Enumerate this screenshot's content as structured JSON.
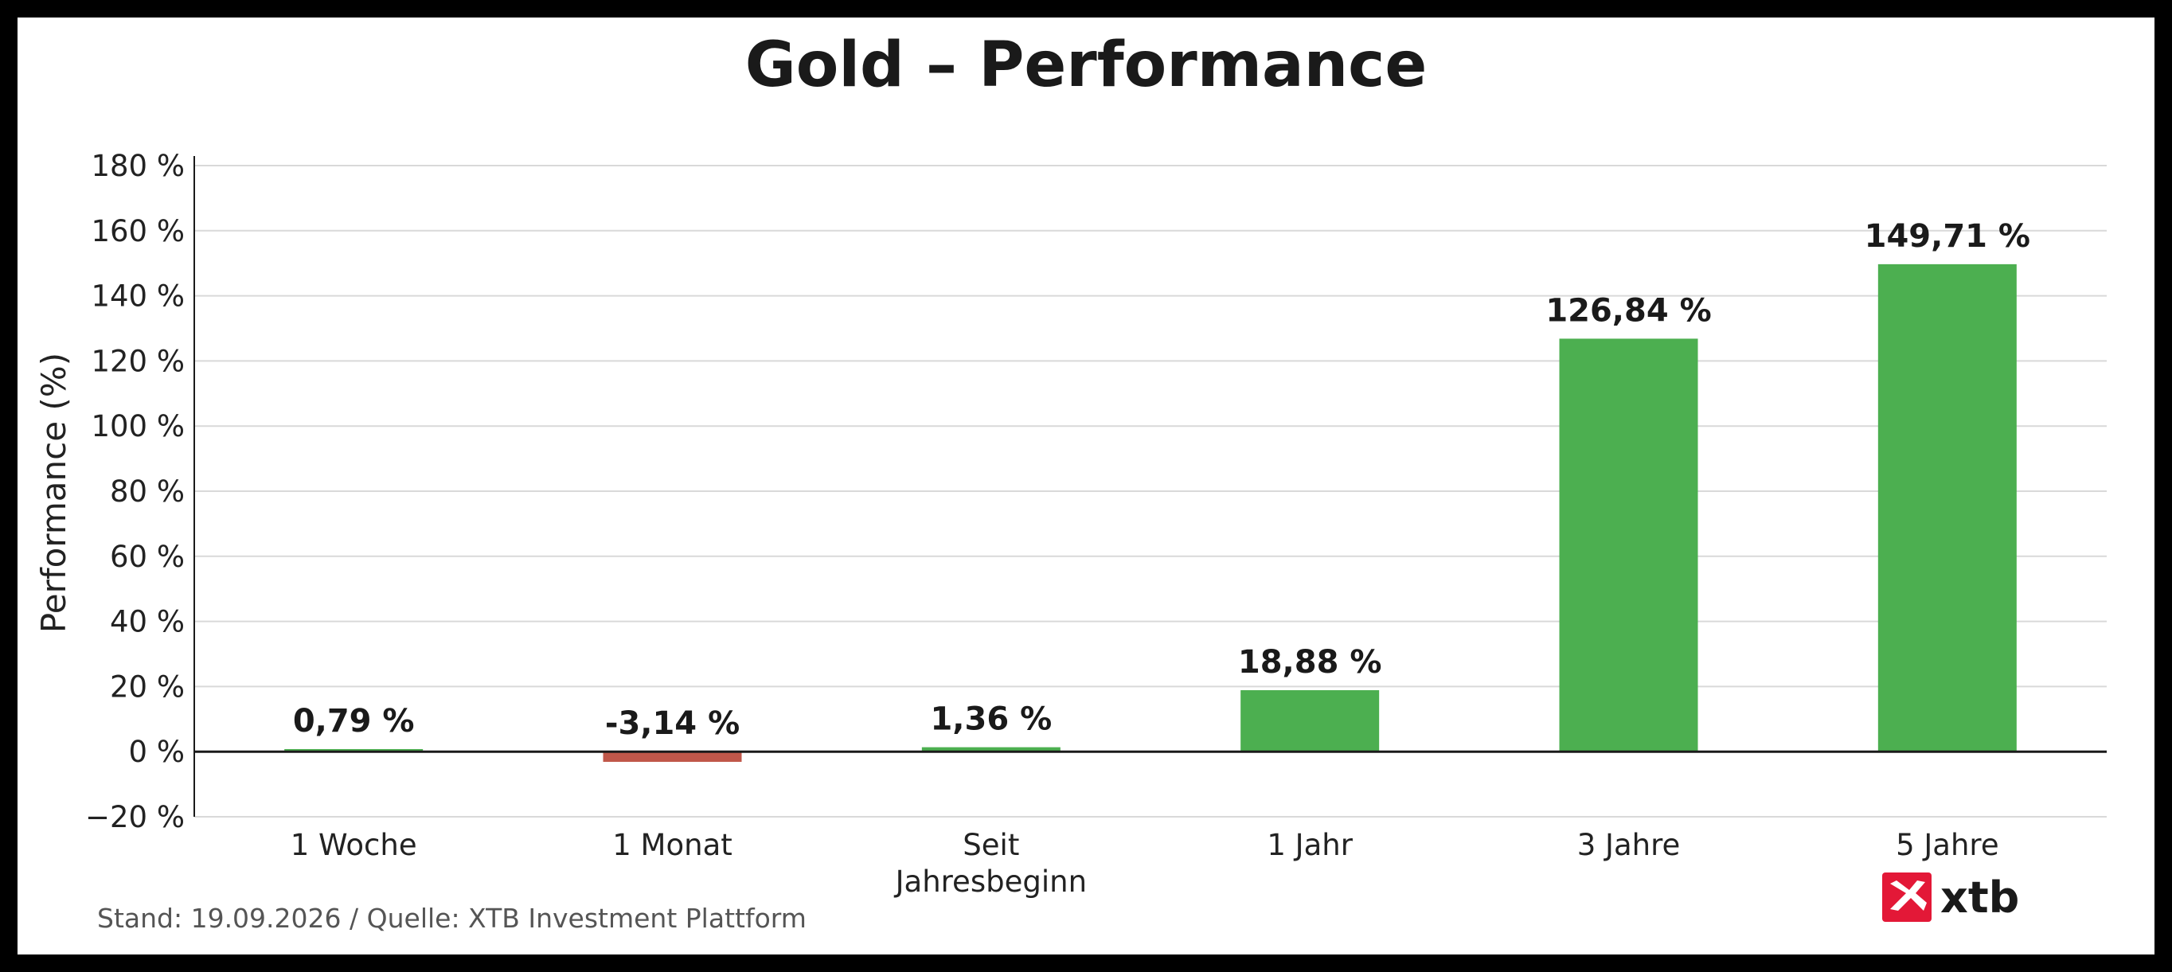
{
  "chart_data": {
    "type": "bar",
    "title": "Gold – Performance",
    "ylabel": "Performance (%)",
    "xlabel": "",
    "categories": [
      [
        "1 Woche"
      ],
      [
        "1 Monat"
      ],
      [
        "Seit",
        "Jahresbeginn"
      ],
      [
        "1 Jahr"
      ],
      [
        "3 Jahre"
      ],
      [
        "5 Jahre"
      ]
    ],
    "values": [
      0.79,
      -3.14,
      1.36,
      18.88,
      126.84,
      149.71
    ],
    "value_labels": [
      "0,79 %",
      "-3,14 %",
      "1,36 %",
      "18,88 %",
      "126,84 %",
      "149,71 %"
    ],
    "ylim": [
      -20,
      180
    ],
    "yticks": [
      -20,
      0,
      20,
      40,
      60,
      80,
      100,
      120,
      140,
      160,
      180
    ],
    "ytick_labels": [
      "−20 %",
      "0 %",
      "20 %",
      "40 %",
      "60 %",
      "80 %",
      "100 %",
      "120 %",
      "140 %",
      "160 %",
      "180 %"
    ],
    "grid": true,
    "legend": "none",
    "colors": {
      "positive": "#4caf50",
      "negative": "#c0574a",
      "grid": "#d9d9d9",
      "zero_line": "#1a1a1a"
    }
  },
  "footer": "Stand: 19.09.2026 / Quelle: XTB Investment Plattform",
  "logo": {
    "text": "xtb",
    "color": "#e31837"
  }
}
